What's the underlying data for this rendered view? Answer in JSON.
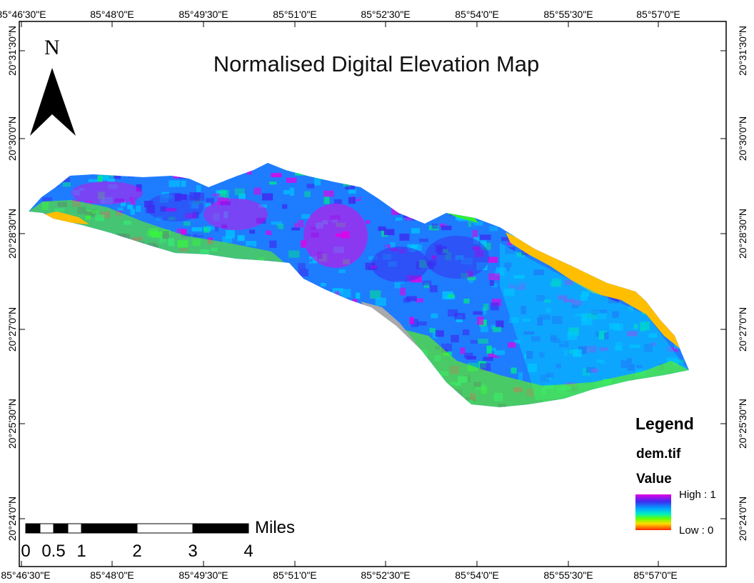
{
  "map": {
    "title": "Normalised Digital Elevation Map",
    "north_arrow": {
      "letter": "N"
    },
    "longitude_labels": [
      "85°46'30\"E",
      "85°48'0\"E",
      "85°49'30\"E",
      "85°51'0\"E",
      "85°52'30\"E",
      "85°54'0\"E",
      "85°55'30\"E",
      "85°57'0\"E"
    ],
    "latitude_labels": [
      "20°31'30\"N",
      "20°30'0\"N",
      "20°28'30\"N",
      "20°27'0\"N",
      "20°25'30\"N",
      "20°24'0\"N"
    ],
    "legend": {
      "title": "Legend",
      "layer": "dem.tif",
      "value_label": "Value",
      "high_label": "High : 1",
      "low_label": "Low : 0",
      "ramp_colors": [
        "#e600e6",
        "#3c2cf0",
        "#00a8ff",
        "#00f0c0",
        "#66ff00",
        "#ffdd00",
        "#ff2a00"
      ]
    },
    "scale_bar": {
      "unit": "Miles",
      "ticks": [
        "0",
        "0.5",
        "1",
        "2",
        "3",
        "4"
      ]
    },
    "elevation_colors": {
      "high": "#e600e6",
      "upper": "#3c2cf0",
      "mid": "#1e7cff",
      "mid_low": "#00c8ff",
      "low": "#00e68c",
      "lower": "#66ff00",
      "lowest": "#ffbf00",
      "floor": "#ff2a00",
      "nodata": "#a9a9a9"
    }
  }
}
